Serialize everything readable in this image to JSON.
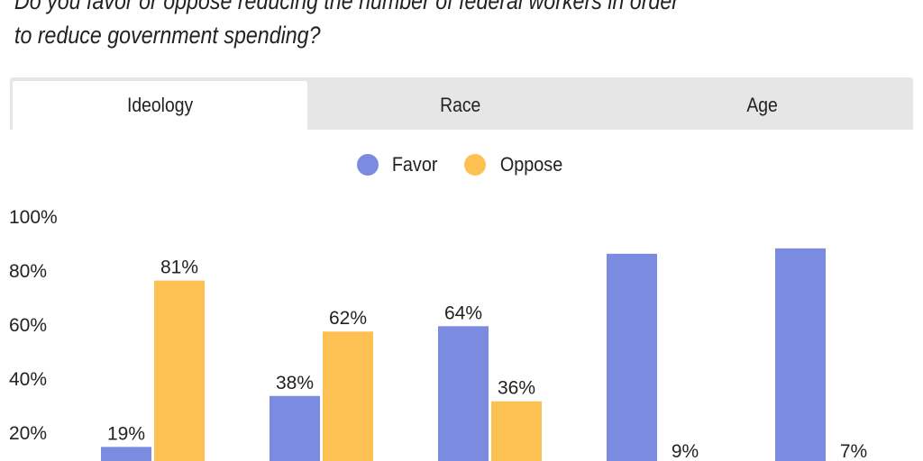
{
  "question": {
    "line1": "Do you favor or oppose reducing the number of federal workers in order",
    "line2": "to reduce government spending?"
  },
  "tabs": [
    {
      "label": "Ideology",
      "active": true
    },
    {
      "label": "Race",
      "active": false
    },
    {
      "label": "Age",
      "active": false
    }
  ],
  "chart_data": {
    "type": "bar",
    "categories": [
      "",
      "",
      "",
      "",
      ""
    ],
    "series": [
      {
        "name": "Favor",
        "color": "#7b8be0",
        "values": [
          19,
          38,
          64,
          91,
          93
        ],
        "labels": [
          "19%",
          "38%",
          "64%",
          null,
          null
        ]
      },
      {
        "name": "Oppose",
        "color": "#fdc153",
        "values": [
          81,
          62,
          36,
          9,
          7
        ],
        "labels": [
          "81%",
          "62%",
          "36%",
          "9%",
          "7%"
        ]
      }
    ],
    "yticks": [
      "100%",
      "80%",
      "60%",
      "40%",
      "20%"
    ],
    "ylim": [
      0,
      100
    ],
    "grid": false,
    "legend": "top-center"
  }
}
